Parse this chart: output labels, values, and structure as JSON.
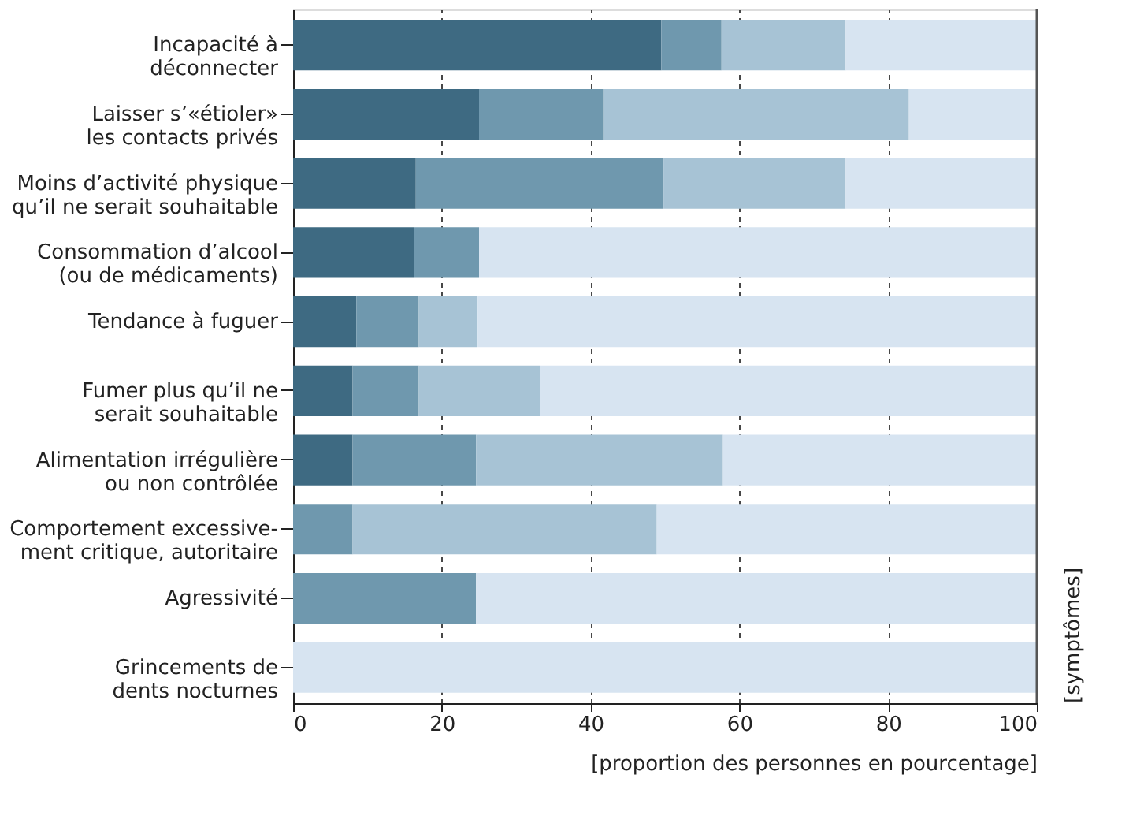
{
  "chart_data": {
    "type": "bar",
    "orientation": "horizontal",
    "stacked": true,
    "categories": [
      "Incapacité à\ndéconnecter",
      "Laisser s’«étioler»\nles contacts privés",
      "Moins d’activité physique\nqu’il ne serait souhaitable",
      "Consommation d’alcool\n(ou de médicaments)",
      "Tendance à fuguer",
      "Fumer plus qu’il ne\nserait souhaitable",
      "Alimentation irrégulière\nou non contrôlée",
      "Comportement excessive-\nment critique, autoritaire",
      "Agressivité",
      "Grincements de\ndents nocturnes"
    ],
    "series": [
      {
        "color": "#3e6a82",
        "values": [
          49.5,
          25,
          16.5,
          16.3,
          8.5,
          8,
          8,
          0,
          0,
          0
        ]
      },
      {
        "color": "#6f98ae",
        "values": [
          8.1,
          16.7,
          33.3,
          8.7,
          8.4,
          8.9,
          16.6,
          8,
          24.6,
          0
        ]
      },
      {
        "color": "#a7c3d5",
        "values": [
          16.7,
          41.1,
          24.5,
          0,
          7.9,
          16.3,
          33.2,
          40.9,
          0,
          0
        ]
      },
      {
        "color": "#d7e4f1",
        "values": [
          25.7,
          17.2,
          25.7,
          75,
          75.2,
          66.8,
          42.2,
          51.1,
          75.4,
          100
        ]
      }
    ],
    "xlim": [
      0,
      100
    ],
    "xticks": [
      0,
      20,
      40,
      60,
      80,
      100
    ],
    "xlabel": "[proportion des personnes en pourcentage]",
    "ylabel": "[symptômes]",
    "grid": "x",
    "legend": false
  }
}
